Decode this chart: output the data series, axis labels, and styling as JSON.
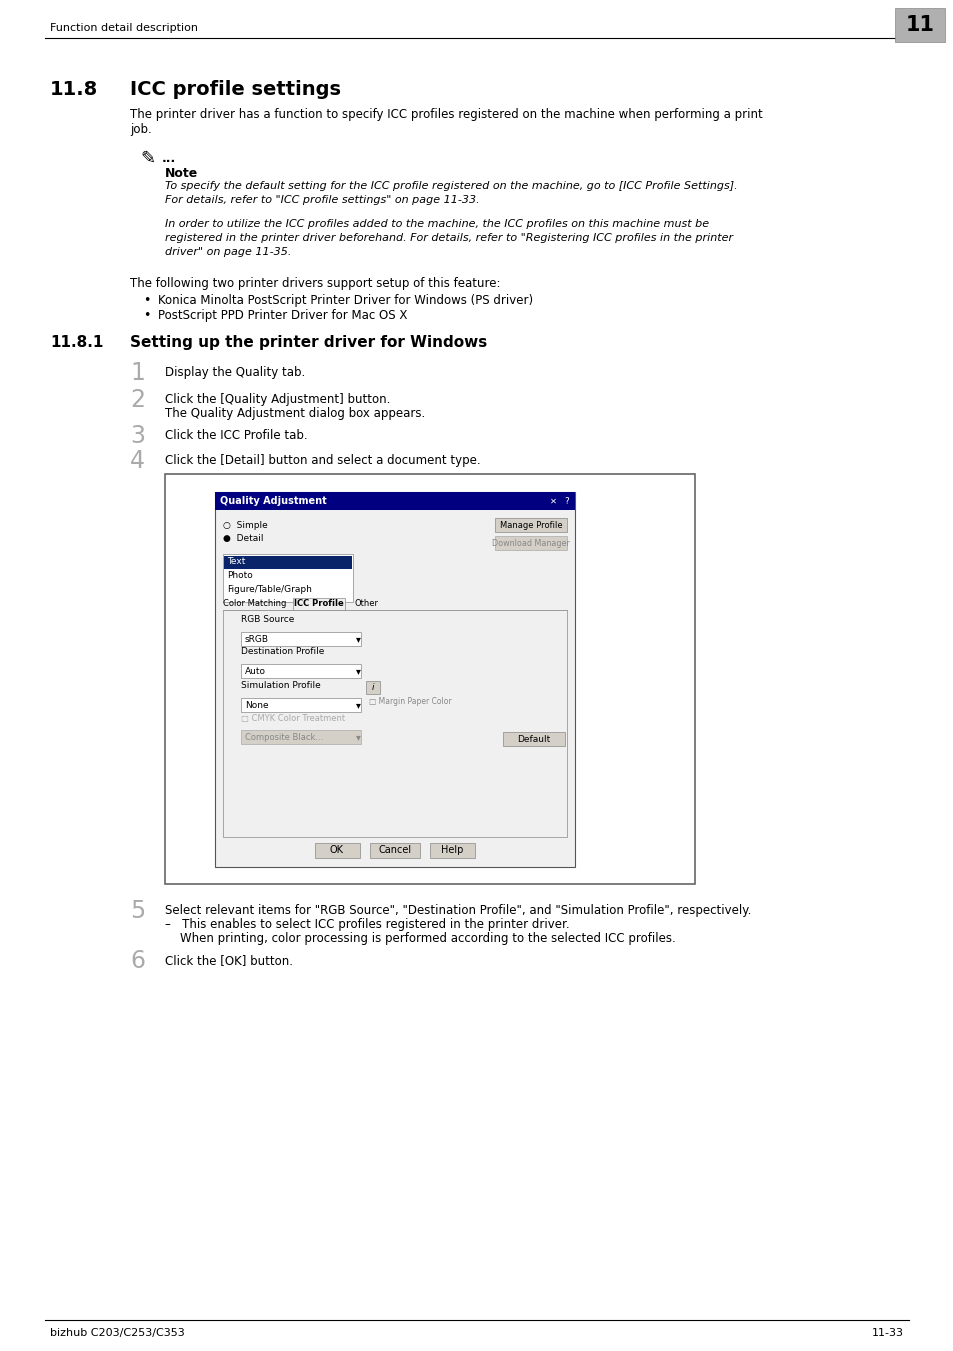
{
  "page_bg": "#ffffff",
  "header_text": "Function detail description",
  "header_number": "11",
  "footer_left": "bizhub C203/C253/C353",
  "footer_right": "11-33",
  "section_number": "11.8",
  "section_title": "ICC profile settings",
  "section_body": "The printer driver has a function to specify ICC profiles registered on the machine when performing a print\njob.",
  "note_label": "Note",
  "note_italic1": "To specify the default setting for the ICC profile registered on the machine, go to [ICC Profile Settings].\nFor details, refer to \"ICC profile settings\" on page 11-33.",
  "note_italic2": "In order to utilize the ICC profiles added to the machine, the ICC profiles on this machine must be\nregistered in the printer driver beforehand. For details, refer to \"Registering ICC profiles in the printer\ndriver\" on page 11-35.",
  "feature_intro": "The following two printer drivers support setup of this feature:",
  "bullet1": "Konica Minolta PostScript Printer Driver for Windows (PS driver)",
  "bullet2": "PostScript PPD Printer Driver for Mac OS X",
  "subsection_number": "11.8.1",
  "subsection_title": "Setting up the printer driver for Windows",
  "step1_num": "1",
  "step1_text": "Display the Quality tab.",
  "step2_num": "2",
  "step2_text": "Click the [Quality Adjustment] button.",
  "step2_sub": "The Quality Adjustment dialog box appears.",
  "step3_num": "3",
  "step3_text": "Click the ICC Profile tab.",
  "step4_num": "4",
  "step4_text": "Click the [Detail] button and select a document type.",
  "step5_num": "5",
  "step5_text": "Select relevant items for \"RGB Source\", \"Destination Profile\", and \"Simulation Profile\", respectively.",
  "step5_sub1": "–   This enables to select ICC profiles registered in the printer driver.",
  "step5_sub2": "    When printing, color processing is performed according to the selected ICC profiles.",
  "step6_num": "6",
  "step6_text": "Click the [OK] button.",
  "dialog_title": "Quality Adjustment"
}
